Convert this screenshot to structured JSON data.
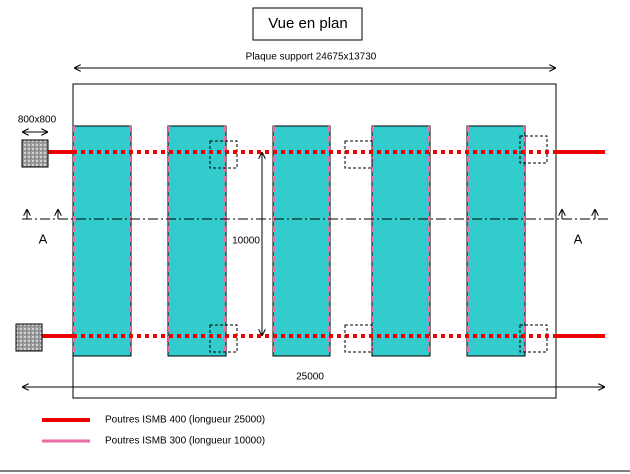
{
  "title": "Vue en plan",
  "dimensions": {
    "plate": "Plaque support 24675x13730",
    "pad": "800x800",
    "height": "10000",
    "width": "25000"
  },
  "section_labels": [
    "A",
    "A"
  ],
  "legend": [
    "Poutres ISMB 400 (longueur 25000)",
    "Poutres ISMB 300 (longueur 10000)"
  ]
}
